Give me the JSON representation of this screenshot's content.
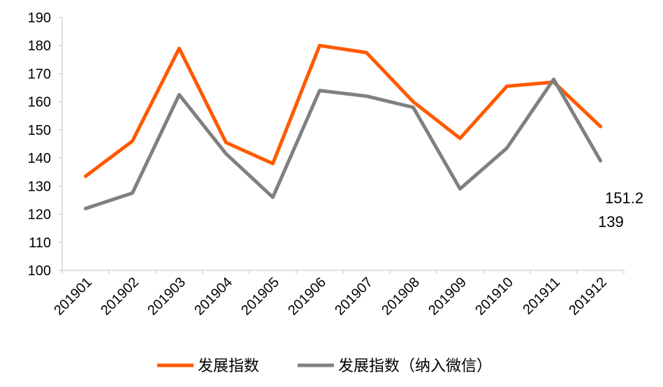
{
  "chart_data": {
    "type": "line",
    "categories": [
      "201901",
      "201902",
      "201903",
      "201904",
      "201905",
      "201906",
      "201907",
      "201908",
      "201909",
      "201910",
      "201911",
      "201912"
    ],
    "series": [
      {
        "name": "发展指数",
        "color": "#FF5A00",
        "values": [
          133.5,
          146,
          179,
          145.5,
          138,
          180,
          177.5,
          160,
          147,
          165.5,
          167,
          151.2
        ]
      },
      {
        "name": "发展指数（纳入微信）",
        "color": "#808080",
        "values": [
          122,
          127.5,
          162.5,
          141.5,
          126,
          164,
          162,
          158,
          129,
          143.5,
          168,
          139
        ]
      }
    ],
    "ylim": [
      100,
      190
    ],
    "yticks": [
      100,
      110,
      120,
      130,
      140,
      150,
      160,
      170,
      180,
      190
    ],
    "data_labels": [
      "151.2",
      "139"
    ],
    "legend_position": "bottom",
    "grid": false
  }
}
